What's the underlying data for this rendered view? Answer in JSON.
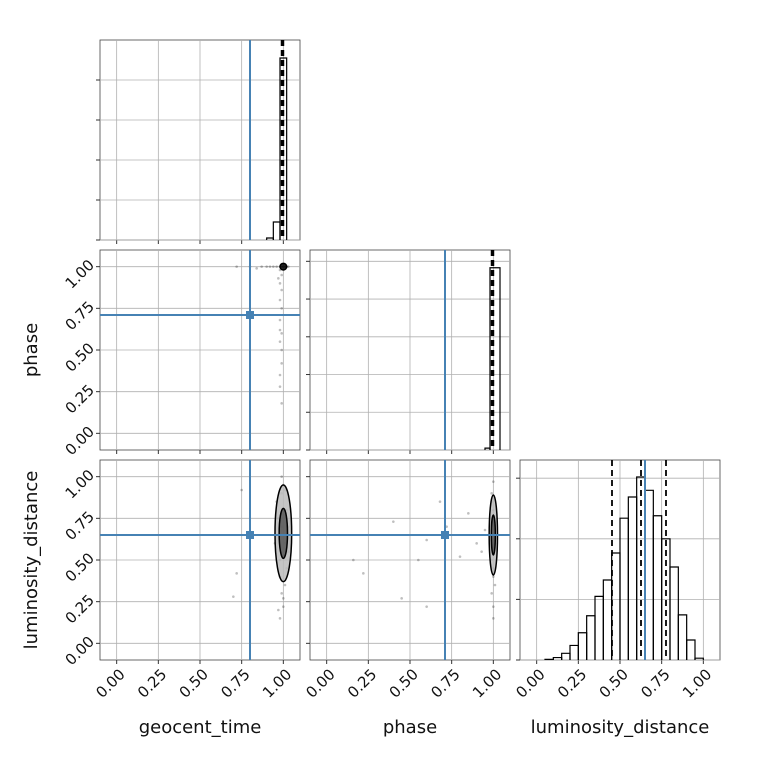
{
  "chart_data": {
    "type": "corner",
    "parameters": [
      "geocent_time",
      "phase",
      "luminosity_distance"
    ],
    "truths": [
      0.8,
      0.71,
      0.65
    ],
    "truth_color": "#4682b4",
    "lim": [
      -0.1,
      1.1
    ],
    "ticks": [
      {
        "value": 0,
        "label": "0.00"
      },
      {
        "value": 0.25,
        "label": "0.25"
      },
      {
        "value": 0.5,
        "label": "0.50"
      },
      {
        "value": 0.75,
        "label": "0.75"
      },
      {
        "value": 1,
        "label": "1.00"
      }
    ],
    "grid": true,
    "histograms": [
      {
        "bins": [
          0.9,
          0.94,
          0.98,
          1.02
        ],
        "counts": [
          50,
          450,
          4550
        ],
        "ylim": [
          0,
          5000
        ],
        "yticks": [
          0,
          1000,
          2000,
          3000,
          4000
        ],
        "quantiles": [
          0.99,
          0.995,
          1.0
        ]
      },
      {
        "bins": [
          0.95,
          0.98,
          1.04
        ],
        "counts": [
          50,
          4830
        ],
        "ylim": [
          0,
          5300
        ],
        "yticks": [
          0,
          1000,
          2000,
          3000,
          4000,
          5000
        ],
        "quantiles": [
          0.99,
          0.995,
          1.0
        ]
      },
      {
        "bins": [
          0.05,
          0.1,
          0.15,
          0.2,
          0.25,
          0.3,
          0.35,
          0.4,
          0.45,
          0.5,
          0.55,
          0.6,
          0.65,
          0.7,
          0.75,
          0.8,
          0.85,
          0.9,
          0.95,
          1.0
        ],
        "counts": [
          10,
          40,
          110,
          240,
          450,
          730,
          1050,
          1320,
          1765,
          2340,
          2690,
          3020,
          2800,
          2380,
          2000,
          1535,
          745,
          330,
          30
        ],
        "ylim": [
          0,
          3300
        ],
        "yticks": [
          0,
          1000,
          2000,
          3000
        ],
        "quantiles": [
          0.452,
          0.626,
          0.776
        ]
      }
    ],
    "pairs": [
      {
        "x": 0,
        "y": 1,
        "samples": [
          [
            1.0,
            1.0
          ],
          [
            0.99,
            1.0
          ],
          [
            1.01,
            1.0
          ],
          [
            0.98,
            1.0
          ],
          [
            0.96,
            1.0
          ],
          [
            0.94,
            1.0
          ],
          [
            0.92,
            1.0
          ],
          [
            0.9,
            1.0
          ],
          [
            0.87,
            1.0
          ],
          [
            0.84,
            0.99
          ],
          [
            0.8,
            1.0
          ],
          [
            0.72,
            1.0
          ],
          [
            0.98,
            0.98
          ],
          [
            0.99,
            0.95
          ],
          [
            0.98,
            0.9
          ],
          [
            0.99,
            0.86
          ],
          [
            0.98,
            0.8
          ],
          [
            0.99,
            0.75
          ],
          [
            0.98,
            0.68
          ],
          [
            0.99,
            0.6
          ],
          [
            0.98,
            0.55
          ],
          [
            0.99,
            0.42
          ],
          [
            0.98,
            0.35
          ],
          [
            0.98,
            0.28
          ],
          [
            0.99,
            0.18
          ],
          [
            1.02,
            1.0
          ],
          [
            1.03,
            1.0
          ],
          [
            0.98,
            0.62
          ],
          [
            0.99,
            0.5
          ],
          [
            0.97,
            0.93
          ]
        ],
        "contours": [
          {
            "cx": 1.0,
            "cy": 1.0,
            "rx": 0.02,
            "ry": 0.02
          }
        ]
      },
      {
        "x": 0,
        "y": 2,
        "samples": [
          [
            1.0,
            0.65
          ],
          [
            0.99,
            0.7
          ],
          [
            1.01,
            0.6
          ],
          [
            0.98,
            0.5
          ],
          [
            1.02,
            0.8
          ],
          [
            0.99,
            0.9
          ],
          [
            1.0,
            0.95
          ],
          [
            0.98,
            0.4
          ],
          [
            1.01,
            0.35
          ],
          [
            0.99,
            0.3
          ],
          [
            1.0,
            0.22
          ],
          [
            0.98,
            0.15
          ],
          [
            1.02,
            0.45
          ],
          [
            0.97,
            0.75
          ],
          [
            1.03,
            0.55
          ],
          [
            0.96,
            0.85
          ],
          [
            0.99,
            1.0
          ],
          [
            1.0,
            0.27
          ],
          [
            0.97,
            0.2
          ],
          [
            1.01,
            0.92
          ],
          [
            0.75,
            0.92
          ],
          [
            0.72,
            0.42
          ],
          [
            0.7,
            0.28
          ],
          [
            0.95,
            0.6
          ],
          [
            1.03,
            0.7
          ]
        ],
        "contours": [
          {
            "cx": 1.0,
            "cy": 0.66,
            "rx": 0.05,
            "ry": 0.29
          },
          {
            "cx": 1.0,
            "cy": 0.66,
            "rx": 0.025,
            "ry": 0.15
          }
        ]
      },
      {
        "x": 1,
        "y": 2,
        "samples": [
          [
            1.0,
            0.65
          ],
          [
            0.99,
            0.7
          ],
          [
            1.01,
            0.6
          ],
          [
            0.99,
            0.5
          ],
          [
            1.0,
            0.8
          ],
          [
            0.99,
            0.9
          ],
          [
            1.0,
            0.97
          ],
          [
            1.0,
            0.4
          ],
          [
            1.01,
            0.35
          ],
          [
            0.99,
            0.3
          ],
          [
            1.0,
            0.22
          ],
          [
            1.0,
            0.15
          ],
          [
            1.0,
            0.45
          ],
          [
            1.0,
            0.75
          ],
          [
            1.0,
            0.55
          ],
          [
            0.99,
            0.85
          ],
          [
            0.16,
            0.5
          ],
          [
            0.22,
            0.42
          ],
          [
            0.4,
            0.73
          ],
          [
            0.55,
            0.5
          ],
          [
            0.6,
            0.62
          ],
          [
            0.72,
            0.7
          ],
          [
            0.8,
            0.52
          ],
          [
            0.85,
            0.78
          ],
          [
            0.9,
            0.6
          ],
          [
            0.45,
            0.27
          ],
          [
            0.68,
            0.85
          ],
          [
            0.93,
            0.55
          ],
          [
            0.6,
            0.22
          ],
          [
            0.95,
            0.68
          ]
        ],
        "contours": [
          {
            "cx": 1.0,
            "cy": 0.65,
            "rx": 0.025,
            "ry": 0.24
          },
          {
            "cx": 1.0,
            "cy": 0.65,
            "rx": 0.012,
            "ry": 0.12
          }
        ]
      }
    ]
  }
}
